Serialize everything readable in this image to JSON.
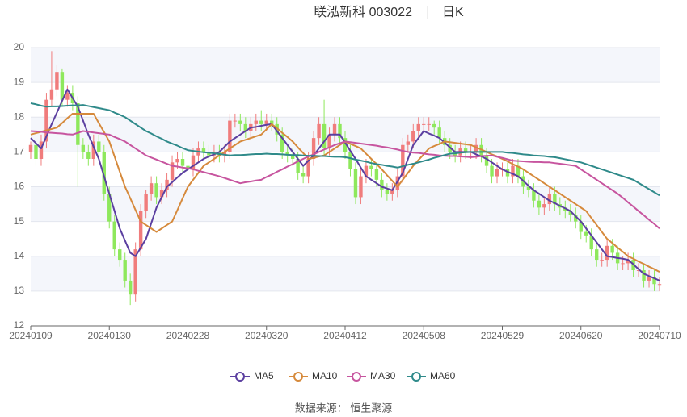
{
  "chart_data": {
    "type": "candlestick",
    "title": "联泓新科 003022",
    "subtitle": "日K",
    "source": "数据来源：  恒生聚源",
    "categories": [
      "20240109",
      null,
      null,
      null,
      null,
      null,
      null,
      null,
      null,
      null,
      null,
      null,
      null,
      null,
      null,
      "20240130",
      null,
      null,
      null,
      null,
      null,
      null,
      null,
      null,
      null,
      null,
      null,
      null,
      null,
      null,
      "20240228",
      null,
      null,
      null,
      null,
      null,
      null,
      null,
      null,
      null,
      null,
      null,
      null,
      null,
      null,
      "20240320",
      null,
      null,
      null,
      null,
      null,
      null,
      null,
      null,
      null,
      null,
      null,
      null,
      null,
      null,
      "20240412",
      null,
      null,
      null,
      null,
      null,
      null,
      null,
      null,
      null,
      null,
      null,
      null,
      null,
      null,
      "20240508",
      null,
      null,
      null,
      null,
      null,
      null,
      null,
      null,
      null,
      null,
      null,
      null,
      null,
      null,
      "20240529",
      null,
      null,
      null,
      null,
      null,
      null,
      null,
      null,
      null,
      null,
      null,
      null,
      null,
      null,
      "20240620",
      null,
      null,
      null,
      null,
      null,
      null,
      null,
      null,
      null,
      null,
      null,
      null,
      null,
      null,
      "20240710"
    ],
    "open": [
      17.0,
      17.2,
      16.8,
      17.3,
      18.5,
      18.8,
      19.3,
      18.5,
      18.7,
      18.4,
      17.2,
      17.0,
      16.8,
      17.3,
      17.0,
      15.8,
      15.0,
      14.2,
      13.9,
      13.3,
      12.9,
      14.2,
      15.3,
      15.8,
      16.1,
      15.7,
      15.9,
      16.2,
      16.7,
      16.8,
      16.6,
      16.5,
      16.9,
      17.1,
      17.0,
      16.9,
      17.0,
      16.9,
      17.0,
      17.9,
      17.9,
      17.8,
      17.6,
      17.8,
      17.9,
      17.8,
      17.9,
      17.8,
      17.5,
      17.0,
      16.9,
      16.8,
      16.4,
      16.3,
      16.8,
      17.4,
      17.8,
      17.1,
      17.5,
      17.8,
      17.4,
      17.0,
      16.5,
      15.7,
      16.3,
      16.6,
      16.5,
      16.2,
      15.9,
      15.8,
      15.9,
      16.3,
      17.2,
      17.3,
      17.6,
      17.8,
      17.8,
      17.8,
      17.7,
      17.4,
      17.2,
      17.0,
      16.9,
      17.1,
      17.0,
      17.0,
      17.2,
      16.9,
      16.6,
      16.3,
      16.5,
      16.5,
      16.3,
      16.6,
      16.3,
      16.0,
      15.9,
      15.6,
      15.4,
      15.5,
      15.8,
      15.5,
      15.4,
      15.3,
      15.2,
      15.0,
      14.7,
      14.6,
      14.2,
      13.9,
      13.9,
      14.3,
      14.1,
      13.8,
      13.8,
      13.9,
      13.6,
      13.6,
      13.3,
      13.4,
      13.2
    ],
    "high": [
      17.3,
      17.4,
      17.5,
      18.7,
      19.9,
      19.5,
      19.4,
      18.9,
      18.9,
      18.6,
      17.4,
      17.2,
      17.5,
      17.5,
      17.2,
      16.0,
      15.2,
      14.4,
      14.1,
      13.5,
      14.4,
      15.5,
      15.9,
      16.3,
      16.3,
      16.1,
      16.4,
      16.9,
      17.0,
      17.0,
      16.8,
      17.1,
      17.3,
      17.3,
      17.2,
      17.2,
      17.2,
      17.2,
      18.1,
      18.1,
      18.1,
      18.0,
      18.0,
      18.1,
      18.2,
      18.1,
      18.1,
      18.0,
      17.7,
      17.2,
      17.1,
      17.0,
      16.6,
      17.0,
      17.6,
      18.0,
      18.5,
      17.7,
      18.0,
      18.0,
      17.6,
      17.2,
      16.7,
      16.5,
      16.8,
      16.8,
      16.7,
      16.4,
      16.1,
      16.1,
      16.5,
      17.4,
      17.5,
      17.8,
      18.0,
      18.0,
      18.0,
      17.9,
      17.9,
      17.6,
      17.4,
      17.2,
      17.3,
      17.3,
      17.2,
      17.4,
      17.4,
      17.1,
      16.8,
      16.7,
      16.7,
      16.7,
      16.8,
      16.8,
      16.5,
      16.2,
      16.1,
      15.8,
      15.7,
      16.0,
      16.0,
      15.7,
      15.6,
      15.5,
      15.4,
      15.2,
      14.9,
      14.8,
      14.4,
      14.1,
      14.5,
      14.5,
      14.3,
      14.0,
      14.1,
      14.1,
      13.8,
      13.8,
      13.6,
      13.6,
      13.4
    ],
    "low": [
      16.8,
      16.6,
      16.6,
      17.1,
      18.3,
      18.6,
      18.3,
      18.3,
      18.2,
      16.0,
      16.8,
      16.6,
      16.6,
      16.8,
      15.6,
      14.8,
      14.0,
      13.7,
      13.1,
      12.6,
      12.7,
      14.0,
      15.1,
      15.6,
      15.5,
      15.5,
      15.7,
      16.0,
      16.5,
      16.4,
      16.3,
      16.3,
      16.7,
      16.8,
      16.7,
      16.7,
      16.7,
      16.7,
      16.8,
      17.7,
      17.6,
      17.4,
      17.4,
      17.6,
      17.6,
      17.6,
      17.6,
      17.3,
      16.8,
      16.7,
      16.6,
      16.2,
      16.1,
      16.1,
      16.6,
      17.2,
      16.9,
      16.9,
      17.3,
      17.2,
      16.8,
      16.3,
      15.5,
      15.5,
      16.1,
      16.3,
      16.0,
      15.7,
      15.6,
      15.6,
      15.7,
      16.1,
      17.0,
      17.1,
      17.4,
      17.6,
      17.6,
      17.5,
      17.2,
      17.0,
      16.8,
      16.7,
      16.7,
      16.8,
      16.8,
      16.8,
      16.7,
      16.4,
      16.1,
      16.1,
      16.3,
      16.1,
      16.1,
      16.1,
      15.8,
      15.7,
      15.4,
      15.2,
      15.2,
      15.3,
      15.3,
      15.2,
      15.1,
      15.0,
      14.8,
      14.5,
      14.4,
      14.0,
      13.7,
      13.7,
      13.7,
      13.9,
      13.6,
      13.6,
      13.6,
      13.4,
      13.4,
      13.1,
      13.1,
      13.0,
      13.0
    ],
    "close": [
      17.2,
      16.8,
      17.3,
      18.5,
      18.8,
      19.3,
      18.5,
      18.7,
      18.4,
      17.2,
      17.0,
      16.8,
      17.3,
      17.0,
      15.8,
      15.0,
      14.2,
      13.9,
      13.3,
      12.9,
      14.2,
      15.3,
      15.8,
      16.1,
      15.7,
      15.9,
      16.2,
      16.7,
      16.8,
      16.6,
      16.5,
      16.9,
      17.1,
      17.0,
      16.9,
      17.0,
      16.9,
      17.0,
      17.9,
      17.9,
      17.8,
      17.6,
      17.8,
      17.9,
      17.8,
      17.9,
      17.8,
      17.5,
      17.0,
      16.9,
      16.8,
      16.4,
      16.3,
      16.8,
      17.4,
      17.8,
      17.1,
      17.5,
      17.8,
      17.4,
      17.0,
      16.5,
      15.7,
      16.3,
      16.6,
      16.5,
      16.2,
      15.9,
      15.8,
      15.9,
      16.3,
      17.2,
      17.3,
      17.6,
      17.8,
      17.8,
      17.8,
      17.7,
      17.4,
      17.2,
      17.0,
      16.9,
      17.1,
      17.0,
      17.0,
      17.2,
      16.9,
      16.6,
      16.3,
      16.5,
      16.5,
      16.3,
      16.6,
      16.3,
      16.0,
      15.9,
      15.6,
      15.4,
      15.5,
      15.8,
      15.5,
      15.4,
      15.3,
      15.2,
      15.0,
      14.7,
      14.6,
      14.2,
      13.9,
      13.9,
      14.3,
      14.1,
      13.8,
      13.8,
      13.9,
      13.6,
      13.6,
      13.3,
      13.4,
      13.2,
      13.2
    ],
    "up_color": "#f07c7c",
    "down_color": "#8ee85c",
    "series": [
      {
        "name": "MA5",
        "color": "#5b3fa0",
        "values": [
          17.4,
          17.25,
          17.1,
          17.45,
          17.8,
          18.13,
          18.47,
          18.8,
          18.55,
          18.3,
          17.9,
          17.5,
          17.15,
          16.8,
          16.3,
          15.8,
          15.3,
          14.8,
          14.45,
          14.1,
          14.0,
          14.25,
          14.5,
          14.95,
          15.4,
          15.7,
          16.0,
          16.13,
          16.27,
          16.4,
          16.5,
          16.6,
          16.7,
          16.8,
          16.87,
          16.93,
          17.0,
          17.15,
          17.3,
          17.4,
          17.5,
          17.6,
          17.7,
          17.72,
          17.75,
          17.78,
          17.8,
          17.6,
          17.4,
          17.2,
          17.0,
          16.8,
          16.6,
          16.75,
          16.9,
          17.1,
          17.3,
          17.5,
          17.5,
          17.5,
          17.27,
          17.03,
          16.8,
          16.55,
          16.3,
          16.2,
          16.1,
          16.0,
          15.95,
          15.9,
          16.15,
          16.4,
          16.8,
          17.2,
          17.4,
          17.6,
          17.53,
          17.47,
          17.4,
          17.27,
          17.13,
          17.0,
          17.0,
          17.0,
          17.0,
          16.93,
          16.87,
          16.8,
          16.7,
          16.6,
          16.5,
          16.43,
          16.37,
          16.3,
          16.17,
          16.03,
          15.9,
          15.8,
          15.7,
          15.6,
          15.53,
          15.45,
          15.38,
          15.3,
          15.15,
          15.0,
          14.8,
          14.6,
          14.4,
          14.2,
          14.0,
          13.98,
          13.95,
          13.93,
          13.9,
          13.77,
          13.63,
          13.5,
          13.43,
          13.37,
          13.3
        ]
      },
      {
        "name": "MA10",
        "color": "#d68a3c",
        "values": [
          17.5,
          17.54,
          17.58,
          17.62,
          17.66,
          17.7,
          17.83,
          17.97,
          18.1,
          18.1,
          18.1,
          18.1,
          18.1,
          17.83,
          17.57,
          17.3,
          16.87,
          16.43,
          16.0,
          15.67,
          15.33,
          15.0,
          14.9,
          14.8,
          14.7,
          14.8,
          14.9,
          15.0,
          15.33,
          15.67,
          16.0,
          16.2,
          16.4,
          16.6,
          16.7,
          16.8,
          16.9,
          17.0,
          17.1,
          17.2,
          17.3,
          17.35,
          17.4,
          17.45,
          17.5,
          17.65,
          17.8,
          17.68,
          17.55,
          17.43,
          17.3,
          17.13,
          16.97,
          16.8,
          16.83,
          16.87,
          16.9,
          17.0,
          17.1,
          17.2,
          17.3,
          17.23,
          17.17,
          17.1,
          16.95,
          16.8,
          16.65,
          16.5,
          16.33,
          16.17,
          16.0,
          16.2,
          16.4,
          16.6,
          16.77,
          16.93,
          17.1,
          17.17,
          17.23,
          17.3,
          17.28,
          17.26,
          17.24,
          17.22,
          17.2,
          17.13,
          17.07,
          17.0,
          16.93,
          16.87,
          16.8,
          16.73,
          16.65,
          16.58,
          16.5,
          16.4,
          16.3,
          16.2,
          16.1,
          16.0,
          15.9,
          15.8,
          15.7,
          15.6,
          15.5,
          15.4,
          15.3,
          15.1,
          14.9,
          14.7,
          14.5,
          14.38,
          14.25,
          14.13,
          14.0,
          13.93,
          13.85,
          13.78,
          13.7,
          13.63,
          13.55
        ]
      },
      {
        "name": "MA30",
        "color": "#c7559f",
        "values": [
          17.6,
          17.59,
          17.58,
          17.56,
          17.55,
          17.54,
          17.53,
          17.51,
          17.5,
          17.55,
          17.6,
          17.58,
          17.56,
          17.54,
          17.52,
          17.5,
          17.43,
          17.37,
          17.3,
          17.2,
          17.1,
          17.0,
          16.9,
          16.84,
          16.78,
          16.72,
          16.66,
          16.6,
          16.58,
          16.55,
          16.53,
          16.5,
          16.46,
          16.42,
          16.38,
          16.34,
          16.3,
          16.25,
          16.2,
          16.15,
          16.1,
          16.13,
          16.15,
          16.18,
          16.2,
          16.28,
          16.35,
          16.43,
          16.5,
          16.58,
          16.65,
          16.73,
          16.8,
          16.87,
          16.93,
          17.0,
          17.07,
          17.13,
          17.2,
          17.25,
          17.3,
          17.28,
          17.26,
          17.24,
          17.22,
          17.2,
          17.18,
          17.15,
          17.13,
          17.1,
          17.07,
          17.03,
          17.0,
          16.98,
          16.97,
          16.95,
          16.93,
          16.92,
          16.9,
          16.89,
          16.88,
          16.88,
          16.87,
          16.86,
          16.85,
          16.86,
          16.88,
          16.89,
          16.9,
          16.86,
          16.83,
          16.79,
          16.75,
          16.74,
          16.73,
          16.72,
          16.71,
          16.71,
          16.7,
          16.7,
          16.68,
          16.66,
          16.64,
          16.62,
          16.6,
          16.5,
          16.4,
          16.3,
          16.2,
          16.1,
          16.0,
          15.9,
          15.8,
          15.68,
          15.55,
          15.43,
          15.3,
          15.18,
          15.05,
          14.93,
          14.8
        ]
      },
      {
        "name": "MA60",
        "color": "#2f8a8a",
        "values": [
          18.4,
          18.37,
          18.33,
          18.3,
          18.31,
          18.31,
          18.32,
          18.33,
          18.34,
          18.34,
          18.35,
          18.32,
          18.29,
          18.26,
          18.23,
          18.2,
          18.13,
          18.07,
          18.0,
          17.9,
          17.8,
          17.7,
          17.6,
          17.53,
          17.45,
          17.38,
          17.3,
          17.24,
          17.18,
          17.11,
          17.05,
          17.03,
          17.01,
          16.99,
          16.98,
          16.96,
          16.94,
          16.92,
          16.9,
          16.91,
          16.91,
          16.92,
          16.93,
          16.94,
          16.94,
          16.95,
          16.94,
          16.94,
          16.93,
          16.92,
          16.91,
          16.91,
          16.9,
          16.89,
          16.89,
          16.88,
          16.88,
          16.87,
          16.86,
          16.86,
          16.85,
          16.82,
          16.78,
          16.75,
          16.72,
          16.68,
          16.65,
          16.63,
          16.6,
          16.58,
          16.55,
          16.59,
          16.63,
          16.66,
          16.7,
          16.74,
          16.78,
          16.83,
          16.87,
          16.91,
          16.95,
          16.96,
          16.98,
          16.99,
          17.0,
          17.0,
          17.0,
          17.0,
          17.0,
          17.0,
          17.0,
          16.98,
          16.97,
          16.95,
          16.93,
          16.92,
          16.9,
          16.89,
          16.88,
          16.86,
          16.85,
          16.82,
          16.79,
          16.76,
          16.73,
          16.7,
          16.65,
          16.6,
          16.55,
          16.5,
          16.45,
          16.4,
          16.35,
          16.3,
          16.25,
          16.2,
          16.11,
          16.02,
          15.93,
          15.84,
          15.75
        ]
      }
    ],
    "ylim": [
      12,
      20
    ],
    "yticks": [
      12,
      13,
      14,
      15,
      16,
      17,
      18,
      19,
      20
    ],
    "grid": true
  }
}
